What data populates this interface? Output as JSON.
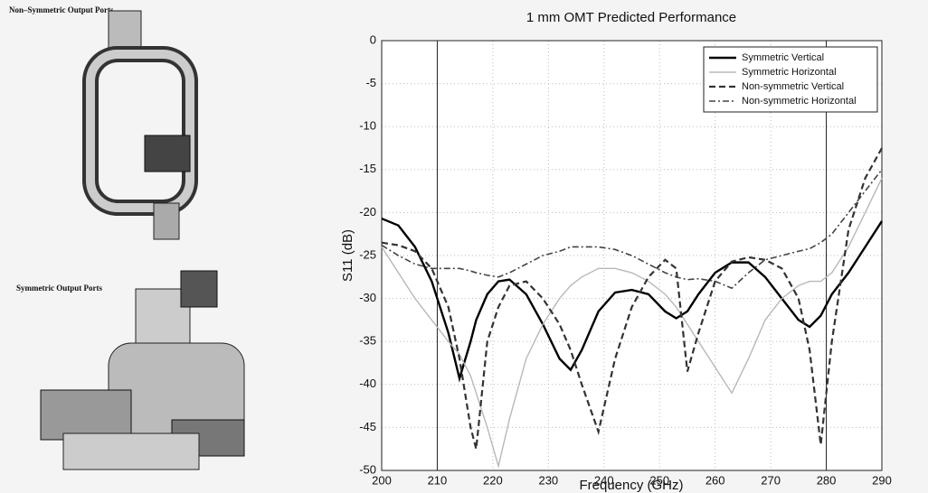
{
  "figure_labels": [
    "Non–Symmetric Output Ports",
    "Symmetric Output Ports"
  ],
  "chart_data": {
    "type": "line",
    "title": "1 mm OMT Predicted Performance",
    "xlabel": "Frequency (GHz)",
    "ylabel": "S11 (dB)",
    "x": [
      200,
      203,
      206,
      209,
      212,
      214,
      216,
      217,
      219,
      221,
      223,
      226,
      229,
      232,
      234,
      236,
      239,
      242,
      245,
      248,
      251,
      253,
      255,
      257,
      260,
      263,
      266,
      269,
      272,
      275,
      277,
      279,
      281,
      284,
      287,
      290
    ],
    "series": [
      {
        "name": "Symmetric Vertical",
        "color": "#000000",
        "linestyle": "solid",
        "width": 2.4,
        "values": [
          -20.7,
          -21.5,
          -24,
          -28,
          -34,
          -39.3,
          -35,
          -32.5,
          -29.5,
          -28,
          -27.8,
          -29.5,
          -33,
          -37,
          -38.3,
          -36,
          -31.5,
          -29.3,
          -29,
          -29.5,
          -31.5,
          -32.3,
          -31.5,
          -29.5,
          -27,
          -25.8,
          -25.8,
          -27.5,
          -30,
          -32.5,
          -33.3,
          -32,
          -29.5,
          -27,
          -24,
          -21
        ]
      },
      {
        "name": "Symmetric Horizontal",
        "color": "#b8b8b8",
        "linestyle": "solid",
        "width": 1.4,
        "values": [
          -24,
          -27,
          -30,
          -32.5,
          -35,
          -36.5,
          -39,
          -41,
          -45,
          -49.5,
          -44,
          -37,
          -33,
          -30,
          -28.5,
          -27.5,
          -26.5,
          -26.5,
          -27,
          -28,
          -29.5,
          -31,
          -33,
          -35,
          -38,
          -41,
          -37,
          -32.5,
          -30,
          -28.5,
          -28,
          -28,
          -27,
          -24,
          -20,
          -16
        ]
      },
      {
        "name": "Non-symmetric Vertical",
        "color": "#333333",
        "linestyle": "dashed",
        "width": 2.2,
        "values": [
          -23.5,
          -23.8,
          -24.5,
          -26.5,
          -31,
          -37,
          -45,
          -47.5,
          -35,
          -31,
          -28.5,
          -28,
          -30,
          -33,
          -36,
          -40,
          -45.5,
          -37,
          -31,
          -27.5,
          -25.5,
          -26.5,
          -38.5,
          -34,
          -28,
          -25.7,
          -25.2,
          -25.5,
          -26.5,
          -30,
          -36,
          -47,
          -35,
          -22,
          -16,
          -12.5
        ]
      },
      {
        "name": "Non-symmetric Horizontal",
        "color": "#444444",
        "linestyle": "dashdot",
        "width": 1.6,
        "values": [
          -23.8,
          -25,
          -26,
          -26.5,
          -26.5,
          -26.5,
          -26.8,
          -27,
          -27.3,
          -27.5,
          -27,
          -26,
          -25,
          -24.5,
          -24,
          -24,
          -24,
          -24.3,
          -25,
          -26,
          -27,
          -27.5,
          -27.8,
          -27.7,
          -28,
          -28.8,
          -27,
          -25.5,
          -25,
          -24.5,
          -24.2,
          -23.5,
          -22.5,
          -20,
          -17.5,
          -15
        ]
      }
    ],
    "xlim": [
      200,
      290
    ],
    "ylim": [
      -50,
      0
    ],
    "xticks": [
      200,
      210,
      220,
      230,
      240,
      250,
      260,
      270,
      280,
      290
    ],
    "yticks": [
      0,
      -5,
      -10,
      -15,
      -20,
      -25,
      -30,
      -35,
      -40,
      -45,
      -50
    ],
    "vlines": [
      210,
      280
    ],
    "grid": true,
    "legend": "top-right"
  }
}
